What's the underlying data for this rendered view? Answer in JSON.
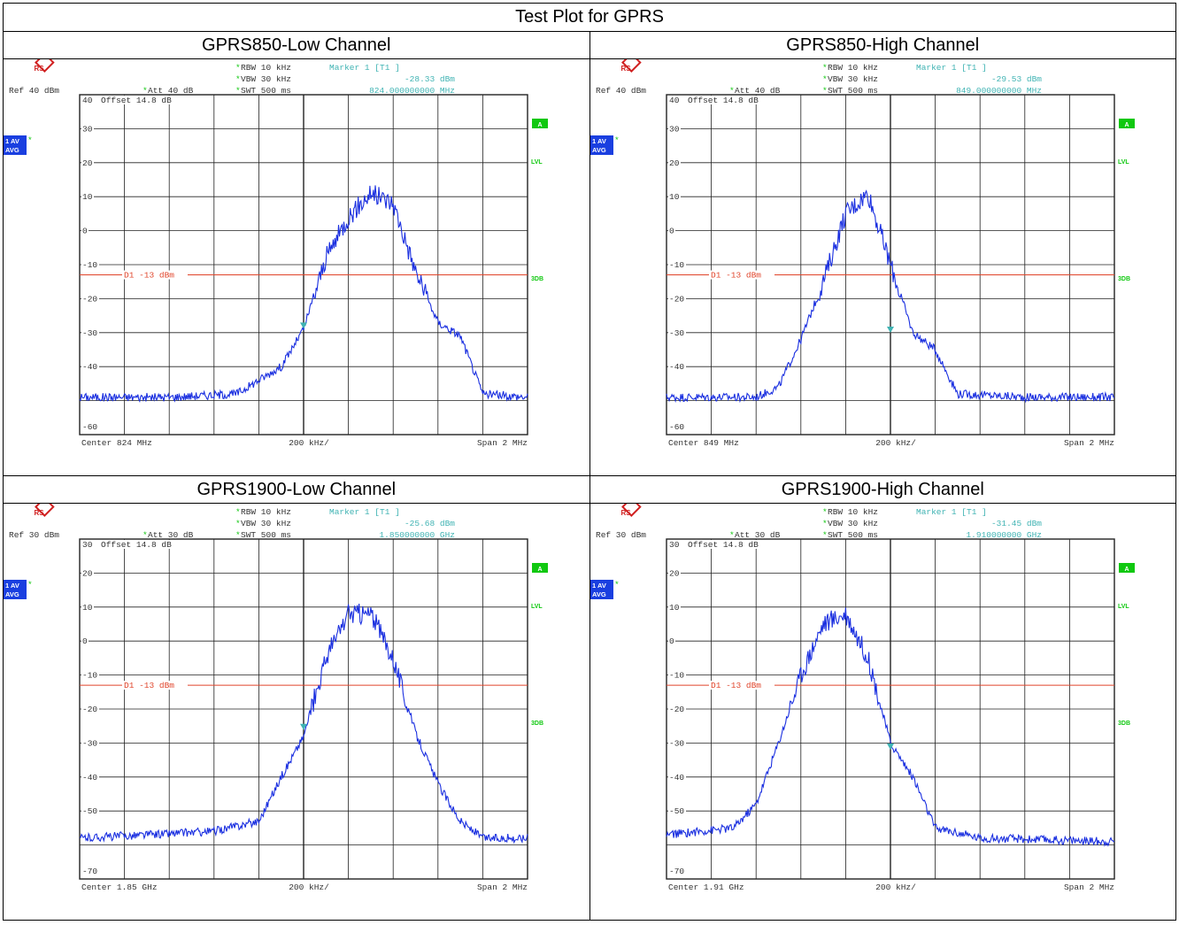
{
  "header": {
    "title": "Test Plot for GPRS"
  },
  "panels": [
    {
      "title": "GPRS850-Low Channel",
      "rbw": "RBW 10 kHz",
      "vbw": "VBW 30 kHz",
      "swt": "SWT 500 ms",
      "ref": "Ref  40 dBm",
      "att": "Att  40 dB",
      "marker": "Marker 1 [T1 ]",
      "marker_level": "-28.33 dBm",
      "marker_freq": "824.000000000 MHz",
      "offset": "Offset  14.8 dB",
      "trace": "1 AV",
      "detector": "AVG",
      "limit_label": "D1 -13 dBm",
      "center": "Center 824 MHz",
      "span": "Span 2 MHz",
      "div": "200 kHz/",
      "badge_a": "A",
      "badge_lvl": "LVL",
      "badge_3db": "3DB"
    },
    {
      "title": "GPRS850-High Channel",
      "rbw": "RBW 10 kHz",
      "vbw": "VBW 30 kHz",
      "swt": "SWT 500 ms",
      "ref": "Ref  40 dBm",
      "att": "Att  40 dB",
      "marker": "Marker 1 [T1 ]",
      "marker_level": "-29.53 dBm",
      "marker_freq": "849.000000000 MHz",
      "offset": "Offset  14.8 dB",
      "trace": "1 AV",
      "detector": "AVG",
      "limit_label": "D1 -13 dBm",
      "center": "Center 849 MHz",
      "span": "Span 2 MHz",
      "div": "200 kHz/",
      "badge_a": "A",
      "badge_lvl": "LVL",
      "badge_3db": "3DB"
    },
    {
      "title": "GPRS1900-Low Channel",
      "rbw": "RBW 10 kHz",
      "vbw": "VBW 30 kHz",
      "swt": "SWT 500 ms",
      "ref": "Ref  30 dBm",
      "att": "Att  30 dB",
      "marker": "Marker 1 [T1 ]",
      "marker_level": "-25.68 dBm",
      "marker_freq": "1.850000000 GHz",
      "offset": "Offset  14.8 dB",
      "trace": "1 AV",
      "detector": "AVG",
      "limit_label": "D1 -13 dBm",
      "center": "Center 1.85 GHz",
      "span": "Span 2 MHz",
      "div": "200 kHz/",
      "badge_a": "A",
      "badge_lvl": "LVL",
      "badge_3db": "3DB"
    },
    {
      "title": "GPRS1900-High Channel",
      "rbw": "RBW 10 kHz",
      "vbw": "VBW 30 kHz",
      "swt": "SWT 500 ms",
      "ref": "Ref  30 dBm",
      "att": "Att  30 dB",
      "marker": "Marker 1 [T1 ]",
      "marker_level": "-31.45 dBm",
      "marker_freq": "1.910000000 GHz",
      "offset": "Offset  14.8 dB",
      "trace": "1 AV",
      "detector": "AVG",
      "limit_label": "D1 -13 dBm",
      "center": "Center 1.91 GHz",
      "span": "Span 2 MHz",
      "div": "200 kHz/",
      "badge_a": "A",
      "badge_lvl": "LVL",
      "badge_3db": "3DB"
    }
  ],
  "colors": {
    "trace": "#1a2fe0",
    "limit": "#e0442a",
    "annot": "#3fb3b3",
    "badge": "#10c810",
    "trace_box": "#1a3fe0"
  },
  "chart_data": [
    {
      "type": "line",
      "y_ticks": [
        "40",
        "30",
        "20",
        "10",
        "0",
        "-10",
        "-20",
        "-30",
        "-40",
        "-60"
      ],
      "ylim": [
        -60,
        40
      ],
      "x_range_mhz": [
        823,
        825
      ],
      "limit_dbm": -13,
      "marker": {
        "x_mhz": 824.0,
        "y_dbm": -28.33
      },
      "series": [
        {
          "x_mhz": [
            823.0,
            823.4,
            823.7,
            823.9,
            824.0,
            824.1,
            824.2,
            824.3,
            824.4,
            824.5,
            824.6,
            824.7,
            824.8,
            825.0
          ],
          "y_dbm": [
            -49,
            -49,
            -48,
            -40,
            -29,
            -8,
            4,
            11,
            8,
            -12,
            -27,
            -31,
            -48,
            -49
          ]
        }
      ]
    },
    {
      "type": "line",
      "y_ticks": [
        "40",
        "30",
        "20",
        "10",
        "0",
        "-10",
        "-20",
        "-30",
        "-40",
        "-60"
      ],
      "ylim": [
        -60,
        40
      ],
      "x_range_mhz": [
        848,
        850
      ],
      "limit_dbm": -13,
      "marker": {
        "x_mhz": 849.0,
        "y_dbm": -29.53
      },
      "series": [
        {
          "x_mhz": [
            848.0,
            848.4,
            848.5,
            848.6,
            848.7,
            848.8,
            848.9,
            849.0,
            849.1,
            849.2,
            849.3,
            849.6,
            850.0
          ],
          "y_dbm": [
            -49,
            -49,
            -46,
            -32,
            -15,
            5,
            11,
            -10,
            -30,
            -35,
            -48,
            -49,
            -49
          ]
        }
      ]
    },
    {
      "type": "line",
      "y_ticks": [
        "30",
        "20",
        "10",
        "0",
        "-10",
        "-20",
        "-30",
        "-40",
        "-50",
        "-70"
      ],
      "ylim": [
        -70,
        30
      ],
      "x_range_mhz": [
        1849,
        1851
      ],
      "limit_dbm": -13,
      "marker": {
        "x_mhz": 1850.0,
        "y_dbm": -25.68
      },
      "series": [
        {
          "x_mhz": [
            1849.0,
            1849.3,
            1849.6,
            1849.8,
            1849.9,
            1850.0,
            1850.1,
            1850.2,
            1850.3,
            1850.4,
            1850.5,
            1850.6,
            1850.7,
            1850.8,
            1851.0
          ],
          "y_dbm": [
            -58,
            -57,
            -56,
            -53,
            -40,
            -28,
            -5,
            8,
            8,
            -5,
            -27,
            -42,
            -53,
            -58,
            -58
          ]
        }
      ]
    },
    {
      "type": "line",
      "y_ticks": [
        "30",
        "20",
        "10",
        "0",
        "-10",
        "-20",
        "-30",
        "-40",
        "-50",
        "-70"
      ],
      "ylim": [
        -70,
        30
      ],
      "x_range_mhz": [
        1909,
        1911
      ],
      "limit_dbm": -13,
      "marker": {
        "x_mhz": 1910.0,
        "y_dbm": -31.45
      },
      "series": [
        {
          "x_mhz": [
            1909.0,
            1909.3,
            1909.4,
            1909.5,
            1909.6,
            1909.7,
            1909.8,
            1909.9,
            1910.0,
            1910.1,
            1910.2,
            1910.4,
            1911.0
          ],
          "y_dbm": [
            -57,
            -55,
            -48,
            -30,
            -10,
            5,
            8,
            -5,
            -30,
            -40,
            -55,
            -58,
            -59
          ]
        }
      ]
    }
  ]
}
